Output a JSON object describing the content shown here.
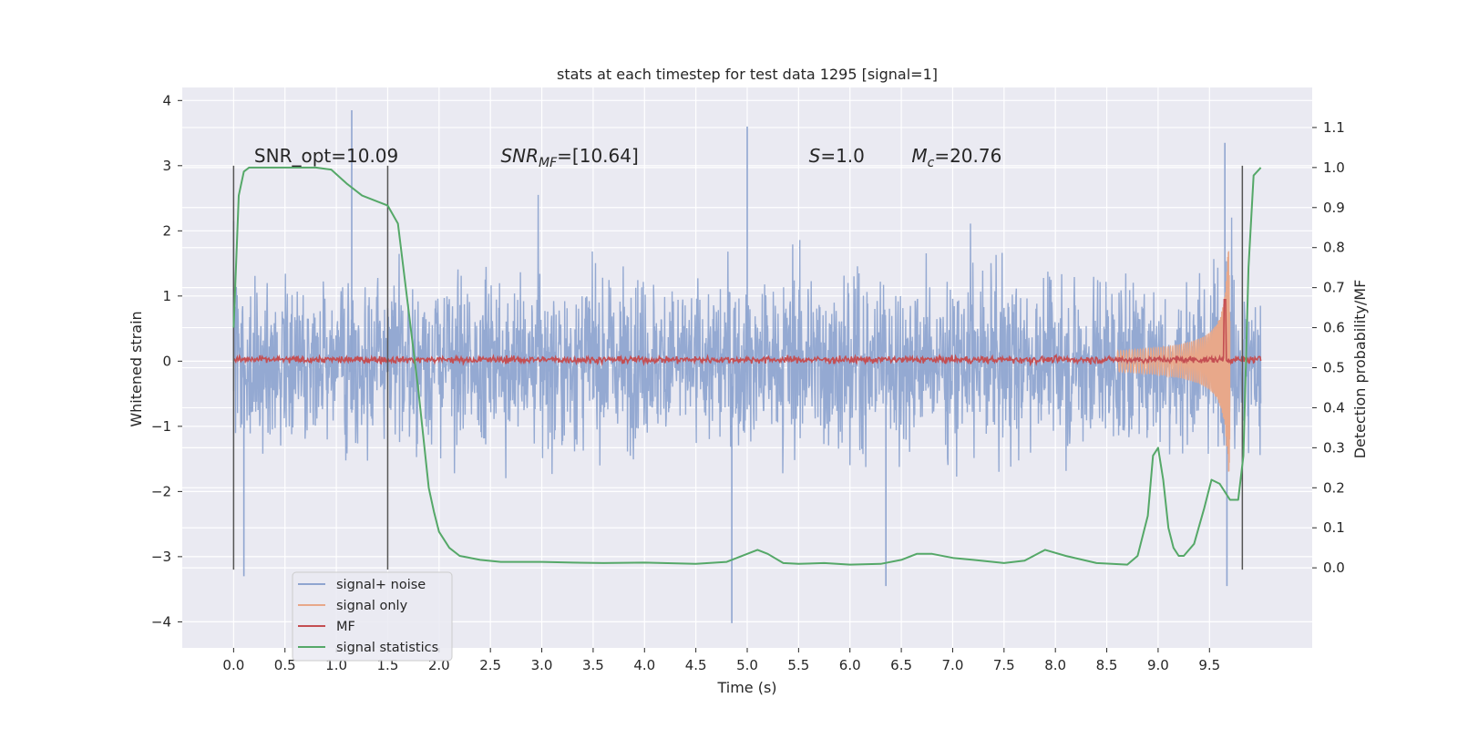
{
  "chart_data": {
    "type": "line",
    "title": "stats at each timestep for test data 1295 [signal=1]",
    "xlabel": "Time (s)",
    "ylabel": "Whitened strain",
    "y2label": "Detection probability/MF",
    "xlim": [
      -0.5,
      10.5
    ],
    "ylim": [
      -4.4,
      4.2
    ],
    "y2lim": [
      -0.2,
      1.2
    ],
    "x_ticks": [
      "0.0",
      "0.5",
      "1.0",
      "1.5",
      "2.0",
      "2.5",
      "3.0",
      "3.5",
      "4.0",
      "4.5",
      "5.0",
      "5.5",
      "6.0",
      "6.5",
      "7.0",
      "7.5",
      "8.0",
      "8.5",
      "9.0",
      "9.5"
    ],
    "y_ticks": [
      "4",
      "3",
      "2",
      "1",
      "0",
      "−1",
      "−2",
      "−3",
      "−4"
    ],
    "y2_ticks": [
      "1.1",
      "1.0",
      "0.9",
      "0.8",
      "0.7",
      "0.6",
      "0.5",
      "0.4",
      "0.3",
      "0.2",
      "0.1",
      "0.0"
    ],
    "grid": true,
    "legend_position": "lower-left",
    "annotations": [
      {
        "label": "SNR_opt=10.09",
        "x": 0.2,
        "y": 3.05
      },
      {
        "label": "SNR",
        "sub": "MF",
        "rest": "=[10.64]",
        "italic": true,
        "x": 2.6,
        "y": 3.05
      },
      {
        "label": "S",
        "rest": "=1.0",
        "italic": true,
        "x": 5.6,
        "y": 3.05
      },
      {
        "label": "M",
        "sub": "c",
        "rest": "=20.76",
        "italic": true,
        "x": 6.6,
        "y": 3.05
      }
    ],
    "vertical_lines": [
      {
        "x": 0.0,
        "y_range": [
          -3.2,
          3.0
        ]
      },
      {
        "x": 1.5,
        "y_range": [
          -3.2,
          3.0
        ]
      },
      {
        "x": 9.82,
        "y_range": [
          -3.2,
          3.0
        ]
      }
    ],
    "series": [
      {
        "name": "signal+ noise",
        "color": "#8fa5d0",
        "axis": "left",
        "x_range": [
          0.0,
          10.0
        ],
        "typical_amplitude": 1.2,
        "peak_max": 3.85,
        "peak_min": -4.02
      },
      {
        "name": "signal only",
        "color": "#e8a88a",
        "axis": "left",
        "x_range": [
          8.6,
          9.7
        ],
        "peak_at_x": 9.65,
        "peak_amplitude": 1.7
      },
      {
        "name": "MF",
        "color": "#c44e52",
        "axis": "right",
        "x_range": [
          0.0,
          10.0
        ],
        "typical_y2": 0.52,
        "spike_at_x": 9.65,
        "spike_y2": 0.67
      },
      {
        "name": "signal statistics",
        "color": "#55a868",
        "axis": "right",
        "x": [
          0.0,
          0.05,
          0.1,
          0.15,
          0.25,
          0.4,
          0.6,
          0.8,
          0.95,
          1.1,
          1.25,
          1.4,
          1.5,
          1.6,
          1.7,
          1.8,
          1.9,
          1.95,
          2.0,
          2.1,
          2.2,
          2.4,
          2.6,
          2.8,
          3.0,
          3.3,
          3.6,
          4.0,
          4.5,
          4.8,
          5.0,
          5.1,
          5.2,
          5.35,
          5.5,
          5.75,
          6.0,
          6.3,
          6.5,
          6.65,
          6.8,
          7.0,
          7.2,
          7.5,
          7.7,
          7.9,
          8.1,
          8.4,
          8.7,
          8.8,
          8.9,
          8.95,
          9.0,
          9.05,
          9.1,
          9.15,
          9.2,
          9.25,
          9.35,
          9.45,
          9.52,
          9.6,
          9.7,
          9.78,
          9.83,
          9.88,
          9.93,
          10.0
        ],
        "y": [
          0.6,
          0.93,
          0.99,
          1.0,
          1.0,
          1.0,
          1.0,
          1.0,
          0.995,
          0.96,
          0.93,
          0.915,
          0.905,
          0.86,
          0.65,
          0.44,
          0.2,
          0.14,
          0.09,
          0.05,
          0.03,
          0.02,
          0.015,
          0.015,
          0.015,
          0.013,
          0.012,
          0.013,
          0.01,
          0.015,
          0.035,
          0.045,
          0.035,
          0.012,
          0.01,
          0.012,
          0.008,
          0.01,
          0.02,
          0.035,
          0.035,
          0.025,
          0.02,
          0.012,
          0.018,
          0.045,
          0.03,
          0.012,
          0.008,
          0.03,
          0.13,
          0.28,
          0.3,
          0.22,
          0.1,
          0.05,
          0.03,
          0.03,
          0.06,
          0.15,
          0.22,
          0.21,
          0.17,
          0.17,
          0.28,
          0.75,
          0.98,
          1.0
        ]
      }
    ]
  }
}
